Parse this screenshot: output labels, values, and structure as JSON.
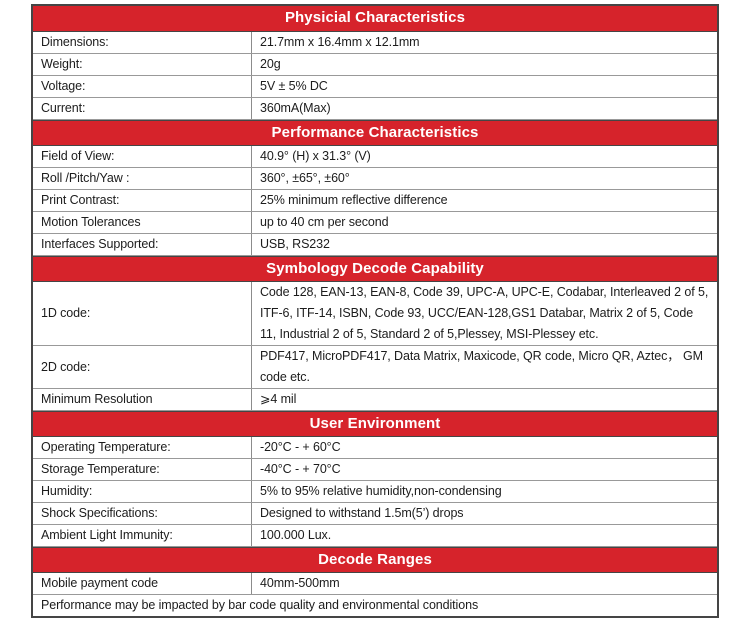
{
  "colors": {
    "band_background": "#d6232b",
    "band_text": "#ffffff",
    "body_text": "#1c1c1c",
    "outer_border": "#454545",
    "inner_border": "#999999"
  },
  "sections": [
    {
      "title": "Physicial Characteristics",
      "rows": [
        {
          "label": "Dimensions:",
          "value": "21.7mm x 16.4mm x 12.1mm"
        },
        {
          "label": "Weight:",
          "value": "20g"
        },
        {
          "label": "Voltage:",
          "value": "5V ± 5% DC"
        },
        {
          "label": "Current:",
          "value": "360mA(Max)"
        }
      ]
    },
    {
      "title": "Performance Characteristics",
      "rows": [
        {
          "label": "Field of View:",
          "value": "40.9° (H) x 31.3° (V)"
        },
        {
          "label": "Roll /Pitch/Yaw :",
          "value": "360°, ±65°, ±60°"
        },
        {
          "label": "Print Contrast:",
          "value": "25% minimum reflective difference"
        },
        {
          "label": "Motion Tolerances",
          "value": "up to 40 cm per second"
        },
        {
          "label": "Interfaces Supported:",
          "value": "USB, RS232"
        }
      ]
    },
    {
      "title": "Symbology Decode Capability",
      "rows": [
        {
          "label": "1D code:",
          "value": "Code 128, EAN-13, EAN-8, Code 39, UPC-A, UPC-E, Codabar, Interleaved 2 of 5, ITF-6, ITF-14, ISBN, Code 93, UCC/EAN-128,GS1 Databar, Matrix 2 of 5, Code 11, Industrial 2 of 5, Standard 2 of 5,Plessey, MSI-Plessey etc."
        },
        {
          "label": "2D code:",
          "value": "PDF417, MicroPDF417, Data Matrix, Maxicode, QR code, Micro QR, Aztec，  GM code etc."
        },
        {
          "label": "Minimum Resolution",
          "value": "⩾4 mil"
        }
      ]
    },
    {
      "title": "User Environment",
      "rows": [
        {
          "label": "Operating Temperature:",
          "value": "-20°C - + 60°C"
        },
        {
          "label": "Storage Temperature:",
          "value": "-40°C - + 70°C"
        },
        {
          "label": "Humidity:",
          "value": "5% to 95% relative humidity,non-condensing"
        },
        {
          "label": "Shock Specifications:",
          "value": "Designed to withstand 1.5m(5’) drops"
        },
        {
          "label": "Ambient Light Immunity:",
          "value": "100.000 Lux."
        }
      ]
    },
    {
      "title": "Decode Ranges",
      "rows": [
        {
          "label": "Mobile payment code",
          "value": "40mm-500mm"
        }
      ]
    }
  ],
  "footer_note": "Performance may be impacted by bar code quality and environmental conditions"
}
